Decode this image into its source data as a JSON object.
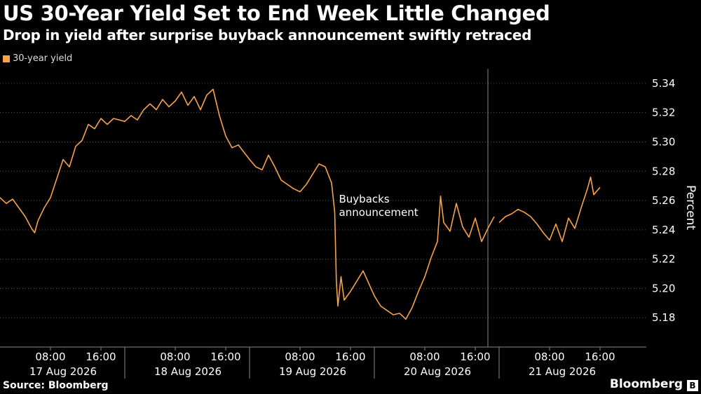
{
  "colors": {
    "background": "#000000",
    "series": "#f7a24c",
    "grid": "#555555",
    "text": "#ffffff"
  },
  "footer": {
    "source": "Source: Bloomberg",
    "brand": "Bloomberg",
    "brand_mark_icon": "bloomberg-b-icon"
  },
  "chart_data": {
    "type": "line",
    "title": "US 30-Year Yield Set to End Week Little Changed",
    "subtitle": "Drop in yield after surprise buyback announcement swiftly retraced",
    "ylabel": "Percent",
    "ylim": [
      5.16,
      5.35
    ],
    "yticks": [
      5.18,
      5.2,
      5.22,
      5.24,
      5.26,
      5.28,
      5.3,
      5.32,
      5.34
    ],
    "ytick_labels": [
      "5.18",
      "5.20",
      "5.22",
      "5.24",
      "5.26",
      "5.28",
      "5.30",
      "5.32",
      "5.34"
    ],
    "grid": true,
    "legend": {
      "position": "top-left",
      "entries": [
        "30-year yield"
      ]
    },
    "x_days": [
      {
        "label": "17 Aug 2026",
        "hours": [
          "08:00",
          "16:00"
        ]
      },
      {
        "label": "18 Aug 2026",
        "hours": [
          "08:00",
          "16:00"
        ]
      },
      {
        "label": "19 Aug 2026",
        "hours": [
          "08:00",
          "16:00"
        ]
      },
      {
        "label": "20 Aug 2026",
        "hours": [
          "08:00",
          "16:00"
        ]
      },
      {
        "label": "21 Aug 2026",
        "hours": [
          "08:00",
          "16:00"
        ]
      }
    ],
    "annotation": {
      "text": [
        "Buybacks",
        "announcement"
      ],
      "x": "19 Aug 2026 13:30"
    },
    "series": [
      {
        "name": "30-year yield",
        "points": [
          [
            "17 Aug 2026 00:00",
            5.262
          ],
          [
            "17 Aug 2026 01:00",
            5.258
          ],
          [
            "17 Aug 2026 02:00",
            5.261
          ],
          [
            "17 Aug 2026 03:00",
            5.255
          ],
          [
            "17 Aug 2026 04:00",
            5.249
          ],
          [
            "17 Aug 2026 05:00",
            5.241
          ],
          [
            "17 Aug 2026 05:30",
            5.238
          ],
          [
            "17 Aug 2026 06:00",
            5.246
          ],
          [
            "17 Aug 2026 07:00",
            5.255
          ],
          [
            "17 Aug 2026 08:00",
            5.262
          ],
          [
            "17 Aug 2026 09:00",
            5.275
          ],
          [
            "17 Aug 2026 10:00",
            5.288
          ],
          [
            "17 Aug 2026 11:00",
            5.283
          ],
          [
            "17 Aug 2026 12:00",
            5.297
          ],
          [
            "17 Aug 2026 13:00",
            5.301
          ],
          [
            "17 Aug 2026 14:00",
            5.312
          ],
          [
            "17 Aug 2026 15:00",
            5.309
          ],
          [
            "17 Aug 2026 16:00",
            5.316
          ],
          [
            "17 Aug 2026 17:00",
            5.312
          ],
          [
            "17 Aug 2026 18:00",
            5.316
          ],
          [
            "18 Aug 2026 00:00",
            5.314
          ],
          [
            "18 Aug 2026 01:00",
            5.318
          ],
          [
            "18 Aug 2026 02:00",
            5.315
          ],
          [
            "18 Aug 2026 03:00",
            5.322
          ],
          [
            "18 Aug 2026 04:00",
            5.326
          ],
          [
            "18 Aug 2026 05:00",
            5.322
          ],
          [
            "18 Aug 2026 06:00",
            5.329
          ],
          [
            "18 Aug 2026 07:00",
            5.324
          ],
          [
            "18 Aug 2026 08:00",
            5.328
          ],
          [
            "18 Aug 2026 09:00",
            5.334
          ],
          [
            "18 Aug 2026 10:00",
            5.325
          ],
          [
            "18 Aug 2026 11:00",
            5.331
          ],
          [
            "18 Aug 2026 12:00",
            5.322
          ],
          [
            "18 Aug 2026 13:00",
            5.332
          ],
          [
            "18 Aug 2026 14:00",
            5.336
          ],
          [
            "18 Aug 2026 15:00",
            5.318
          ],
          [
            "18 Aug 2026 16:00",
            5.304
          ],
          [
            "18 Aug 2026 17:00",
            5.296
          ],
          [
            "18 Aug 2026 18:00",
            5.298
          ],
          [
            "19 Aug 2026 00:00",
            5.288
          ],
          [
            "19 Aug 2026 01:00",
            5.283
          ],
          [
            "19 Aug 2026 02:00",
            5.281
          ],
          [
            "19 Aug 2026 03:00",
            5.291
          ],
          [
            "19 Aug 2026 04:00",
            5.283
          ],
          [
            "19 Aug 2026 05:00",
            5.274
          ],
          [
            "19 Aug 2026 06:00",
            5.271
          ],
          [
            "19 Aug 2026 07:00",
            5.268
          ],
          [
            "19 Aug 2026 08:00",
            5.266
          ],
          [
            "19 Aug 2026 09:00",
            5.271
          ],
          [
            "19 Aug 2026 10:00",
            5.278
          ],
          [
            "19 Aug 2026 11:00",
            5.285
          ],
          [
            "19 Aug 2026 12:00",
            5.283
          ],
          [
            "19 Aug 2026 13:00",
            5.272
          ],
          [
            "19 Aug 2026 13:30",
            5.252
          ],
          [
            "19 Aug 2026 13:45",
            5.205
          ],
          [
            "19 Aug 2026 14:00",
            5.188
          ],
          [
            "19 Aug 2026 14:30",
            5.208
          ],
          [
            "19 Aug 2026 15:00",
            5.192
          ],
          [
            "19 Aug 2026 16:00",
            5.198
          ],
          [
            "19 Aug 2026 17:00",
            5.205
          ],
          [
            "19 Aug 2026 18:00",
            5.212
          ],
          [
            "20 Aug 2026 00:00",
            5.195
          ],
          [
            "20 Aug 2026 01:00",
            5.188
          ],
          [
            "20 Aug 2026 02:00",
            5.185
          ],
          [
            "20 Aug 2026 03:00",
            5.182
          ],
          [
            "20 Aug 2026 04:00",
            5.183
          ],
          [
            "20 Aug 2026 05:00",
            5.179
          ],
          [
            "20 Aug 2026 06:00",
            5.187
          ],
          [
            "20 Aug 2026 07:00",
            5.198
          ],
          [
            "20 Aug 2026 08:00",
            5.208
          ],
          [
            "20 Aug 2026 09:00",
            5.221
          ],
          [
            "20 Aug 2026 10:00",
            5.232
          ],
          [
            "20 Aug 2026 10:30",
            5.263
          ],
          [
            "20 Aug 2026 11:00",
            5.245
          ],
          [
            "20 Aug 2026 12:00",
            5.239
          ],
          [
            "20 Aug 2026 13:00",
            5.258
          ],
          [
            "20 Aug 2026 14:00",
            5.242
          ],
          [
            "20 Aug 2026 15:00",
            5.235
          ],
          [
            "20 Aug 2026 16:00",
            5.248
          ],
          [
            "20 Aug 2026 17:00",
            5.232
          ],
          [
            "20 Aug 2026 18:00",
            5.241
          ],
          [
            "20 Aug 2026 19:00",
            5.249
          ],
          [
            "21 Aug 2026 00:00",
            5.245
          ],
          [
            "21 Aug 2026 01:00",
            5.249
          ],
          [
            "21 Aug 2026 02:00",
            5.251
          ],
          [
            "21 Aug 2026 03:00",
            5.254
          ],
          [
            "21 Aug 2026 04:00",
            5.252
          ],
          [
            "21 Aug 2026 05:00",
            5.249
          ],
          [
            "21 Aug 2026 06:00",
            5.244
          ],
          [
            "21 Aug 2026 07:00",
            5.238
          ],
          [
            "21 Aug 2026 08:00",
            5.233
          ],
          [
            "21 Aug 2026 09:00",
            5.244
          ],
          [
            "21 Aug 2026 10:00",
            5.232
          ],
          [
            "21 Aug 2026 11:00",
            5.248
          ],
          [
            "21 Aug 2026 12:00",
            5.241
          ],
          [
            "21 Aug 2026 13:00",
            5.255
          ],
          [
            "21 Aug 2026 14:00",
            5.268
          ],
          [
            "21 Aug 2026 14:30",
            5.276
          ],
          [
            "21 Aug 2026 15:00",
            5.264
          ],
          [
            "21 Aug 2026 16:00",
            5.269
          ]
        ]
      }
    ]
  }
}
